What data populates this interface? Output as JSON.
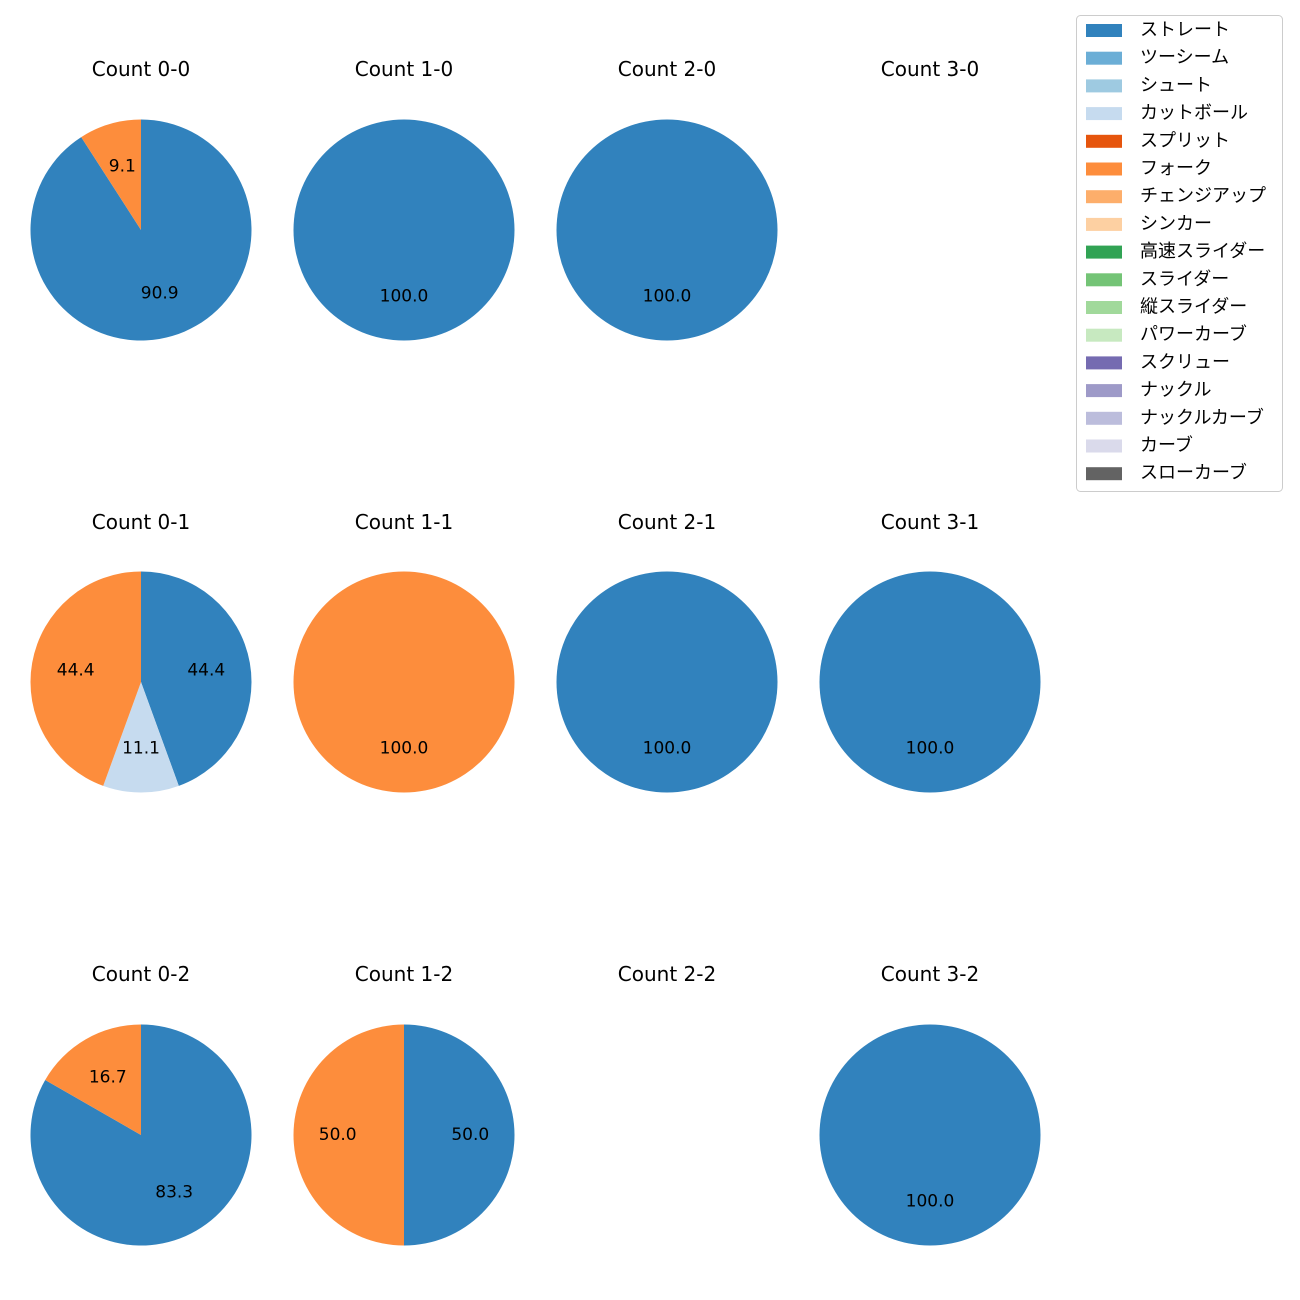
{
  "chart_data": {
    "type": "pie",
    "title": "",
    "legend": {
      "placement": "top-right",
      "entries": [
        {
          "name": "ストレート",
          "color": "#3182bd"
        },
        {
          "name": "ツーシーム",
          "color": "#6baed6"
        },
        {
          "name": "シュート",
          "color": "#9ecae1"
        },
        {
          "name": "カットボール",
          "color": "#c6dbef"
        },
        {
          "name": "スプリット",
          "color": "#e6550d"
        },
        {
          "name": "フォーク",
          "color": "#fd8d3c"
        },
        {
          "name": "チェンジアップ",
          "color": "#fdae6b"
        },
        {
          "name": "シンカー",
          "color": "#fdd0a2"
        },
        {
          "name": "高速スライダー",
          "color": "#31a354"
        },
        {
          "name": "スライダー",
          "color": "#74c476"
        },
        {
          "name": "縦スライダー",
          "color": "#a1d99b"
        },
        {
          "name": "パワーカーブ",
          "color": "#c7e9c0"
        },
        {
          "name": "スクリュー",
          "color": "#756bb1"
        },
        {
          "name": "ナックル",
          "color": "#9e9ac8"
        },
        {
          "name": "ナックルカーブ",
          "color": "#bcbddc"
        },
        {
          "name": "カーブ",
          "color": "#dadaeb"
        },
        {
          "name": "スローカーブ",
          "color": "#636363"
        }
      ]
    },
    "pies": [
      {
        "title": "Count 0-0",
        "row": 0,
        "col": 0,
        "slices": [
          {
            "label": "ストレート",
            "value": 90.9,
            "text": "90.9"
          },
          {
            "label": "フォーク",
            "value": 9.1,
            "text": "9.1"
          }
        ]
      },
      {
        "title": "Count 1-0",
        "row": 0,
        "col": 1,
        "slices": [
          {
            "label": "ストレート",
            "value": 100.0,
            "text": "100.0"
          }
        ]
      },
      {
        "title": "Count 2-0",
        "row": 0,
        "col": 2,
        "slices": [
          {
            "label": "ストレート",
            "value": 100.0,
            "text": "100.0"
          }
        ]
      },
      {
        "title": "Count 3-0",
        "row": 0,
        "col": 3,
        "slices": []
      },
      {
        "title": "Count 0-1",
        "row": 1,
        "col": 0,
        "slices": [
          {
            "label": "ストレート",
            "value": 44.4,
            "text": "44.4"
          },
          {
            "label": "カットボール",
            "value": 11.1,
            "text": "11.1"
          },
          {
            "label": "フォーク",
            "value": 44.4,
            "text": "44.4"
          }
        ]
      },
      {
        "title": "Count 1-1",
        "row": 1,
        "col": 1,
        "slices": [
          {
            "label": "フォーク",
            "value": 100.0,
            "text": "100.0"
          }
        ]
      },
      {
        "title": "Count 2-1",
        "row": 1,
        "col": 2,
        "slices": [
          {
            "label": "ストレート",
            "value": 100.0,
            "text": "100.0"
          }
        ]
      },
      {
        "title": "Count 3-1",
        "row": 1,
        "col": 3,
        "slices": [
          {
            "label": "ストレート",
            "value": 100.0,
            "text": "100.0"
          }
        ]
      },
      {
        "title": "Count 0-2",
        "row": 2,
        "col": 0,
        "slices": [
          {
            "label": "ストレート",
            "value": 83.3,
            "text": "83.3"
          },
          {
            "label": "フォーク",
            "value": 16.7,
            "text": "16.7"
          }
        ]
      },
      {
        "title": "Count 1-2",
        "row": 2,
        "col": 1,
        "slices": [
          {
            "label": "ストレート",
            "value": 50.0,
            "text": "50.0"
          },
          {
            "label": "フォーク",
            "value": 50.0,
            "text": "50.0"
          }
        ]
      },
      {
        "title": "Count 2-2",
        "row": 2,
        "col": 2,
        "slices": []
      },
      {
        "title": "Count 3-2",
        "row": 2,
        "col": 3,
        "slices": [
          {
            "label": "ストレート",
            "value": 100.0,
            "text": "100.0"
          }
        ]
      }
    ]
  }
}
